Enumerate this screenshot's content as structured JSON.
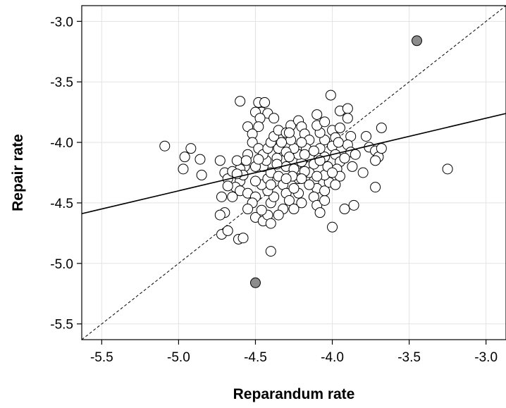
{
  "chart_data": {
    "type": "scatter",
    "xlabel": "Reparandum rate",
    "ylabel": "Repair rate",
    "xlim": [
      -5.63,
      -2.87
    ],
    "ylim": [
      -5.63,
      -2.87
    ],
    "xticks": [
      -5.5,
      -5.0,
      -4.5,
      -4.0,
      -3.5,
      -3.0
    ],
    "yticks": [
      -3.0,
      -3.5,
      -4.0,
      -4.5,
      -5.0,
      -5.5
    ],
    "xtick_labels": [
      "-5.5",
      "-5.0",
      "-4.5",
      "-4.0",
      "-3.5",
      "-3.0"
    ],
    "ytick_labels": [
      "-3.0",
      "-3.5",
      "-4.0",
      "-4.5",
      "-5.0",
      "-5.5"
    ],
    "grid": true,
    "colors": {
      "point_fill": "#ffffff",
      "highlight_fill": "#8c8c8c",
      "line": "#000000"
    },
    "fit_line": {
      "slope": 0.3,
      "intercept": -2.9
    },
    "reference_line": {
      "slope": 1,
      "intercept": 0,
      "style": "dashed"
    },
    "highlighted_points": [
      {
        "x": -3.45,
        "y": -3.16
      },
      {
        "x": -4.5,
        "y": -5.16
      }
    ],
    "points": [
      [
        -5.09,
        -4.03
      ],
      [
        -4.96,
        -4.12
      ],
      [
        -4.97,
        -4.22
      ],
      [
        -4.92,
        -4.05
      ],
      [
        -4.86,
        -4.14
      ],
      [
        -4.85,
        -4.27
      ],
      [
        -4.73,
        -4.15
      ],
      [
        -4.7,
        -4.25
      ],
      [
        -4.68,
        -4.3
      ],
      [
        -4.72,
        -4.45
      ],
      [
        -4.7,
        -4.58
      ],
      [
        -4.73,
        -4.6
      ],
      [
        -4.72,
        -4.76
      ],
      [
        -4.68,
        -4.73
      ],
      [
        -4.61,
        -4.8
      ],
      [
        -4.58,
        -4.79
      ],
      [
        -4.6,
        -3.66
      ],
      [
        -4.48,
        -3.67
      ],
      [
        -4.44,
        -3.67
      ],
      [
        -4.46,
        -3.75
      ],
      [
        -4.42,
        -3.76
      ],
      [
        -4.5,
        -3.75
      ],
      [
        -4.47,
        -3.8
      ],
      [
        -4.48,
        -3.87
      ],
      [
        -4.55,
        -3.87
      ],
      [
        -4.52,
        -3.93
      ],
      [
        -4.52,
        -4.0
      ],
      [
        -4.48,
        -4.05
      ],
      [
        -4.55,
        -4.1
      ],
      [
        -4.57,
        -4.2
      ],
      [
        -4.6,
        -4.22
      ],
      [
        -4.62,
        -4.15
      ],
      [
        -4.65,
        -4.24
      ],
      [
        -4.6,
        -4.32
      ],
      [
        -4.63,
        -4.37
      ],
      [
        -4.6,
        -4.4
      ],
      [
        -4.55,
        -4.42
      ],
      [
        -4.5,
        -4.45
      ],
      [
        -4.52,
        -4.5
      ],
      [
        -4.55,
        -4.55
      ],
      [
        -4.5,
        -4.62
      ],
      [
        -4.45,
        -4.65
      ],
      [
        -4.42,
        -4.6
      ],
      [
        -4.46,
        -4.56
      ],
      [
        -4.4,
        -4.5
      ],
      [
        -4.38,
        -4.45
      ],
      [
        -4.42,
        -4.4
      ],
      [
        -4.46,
        -4.35
      ],
      [
        -4.42,
        -4.3
      ],
      [
        -4.4,
        -4.25
      ],
      [
        -4.45,
        -4.2
      ],
      [
        -4.43,
        -4.15
      ],
      [
        -4.45,
        -4.1
      ],
      [
        -4.42,
        -4.05
      ],
      [
        -4.4,
        -4.0
      ],
      [
        -4.38,
        -3.95
      ],
      [
        -4.35,
        -3.9
      ],
      [
        -4.35,
        -4.05
      ],
      [
        -4.32,
        -4.15
      ],
      [
        -4.3,
        -4.2
      ],
      [
        -4.35,
        -4.28
      ],
      [
        -4.32,
        -4.35
      ],
      [
        -4.3,
        -4.42
      ],
      [
        -4.28,
        -4.48
      ],
      [
        -4.32,
        -4.55
      ],
      [
        -4.35,
        -4.6
      ],
      [
        -4.4,
        -4.67
      ],
      [
        -4.4,
        -4.9
      ],
      [
        -4.25,
        -4.55
      ],
      [
        -4.2,
        -4.5
      ],
      [
        -4.22,
        -4.42
      ],
      [
        -4.25,
        -4.38
      ],
      [
        -4.22,
        -4.3
      ],
      [
        -4.25,
        -4.22
      ],
      [
        -4.2,
        -4.16
      ],
      [
        -4.22,
        -4.1
      ],
      [
        -4.25,
        -4.05
      ],
      [
        -4.27,
        -3.98
      ],
      [
        -4.3,
        -3.92
      ],
      [
        -4.27,
        -3.86
      ],
      [
        -4.22,
        -3.82
      ],
      [
        -4.2,
        -3.87
      ],
      [
        -4.18,
        -3.93
      ],
      [
        -4.15,
        -3.98
      ],
      [
        -4.17,
        -4.05
      ],
      [
        -4.15,
        -4.12
      ],
      [
        -4.12,
        -4.18
      ],
      [
        -4.15,
        -4.25
      ],
      [
        -4.12,
        -4.32
      ],
      [
        -4.1,
        -4.38
      ],
      [
        -4.12,
        -4.45
      ],
      [
        -4.1,
        -4.52
      ],
      [
        -4.08,
        -4.58
      ],
      [
        -4.05,
        -4.48
      ],
      [
        -4.05,
        -4.4
      ],
      [
        -4.02,
        -4.33
      ],
      [
        -4.05,
        -4.27
      ],
      [
        -4.03,
        -4.2
      ],
      [
        -4.05,
        -4.12
      ],
      [
        -4.08,
        -4.05
      ],
      [
        -4.05,
        -3.98
      ],
      [
        -4.08,
        -3.92
      ],
      [
        -4.1,
        -3.86
      ],
      [
        -4.1,
        -3.77
      ],
      [
        -4.05,
        -3.83
      ],
      [
        -4.0,
        -3.9
      ],
      [
        -3.98,
        -3.96
      ],
      [
        -4.0,
        -4.03
      ],
      [
        -3.98,
        -4.1
      ],
      [
        -3.95,
        -4.16
      ],
      [
        -3.97,
        -4.22
      ],
      [
        -3.95,
        -4.28
      ],
      [
        -3.98,
        -4.35
      ],
      [
        -4.0,
        -4.7
      ],
      [
        -4.01,
        -3.61
      ],
      [
        -3.95,
        -3.74
      ],
      [
        -3.9,
        -3.72
      ],
      [
        -3.9,
        -3.8
      ],
      [
        -3.95,
        -3.88
      ],
      [
        -3.88,
        -3.95
      ],
      [
        -3.9,
        -4.02
      ],
      [
        -3.88,
        -4.08
      ],
      [
        -3.92,
        -4.13
      ],
      [
        -3.87,
        -4.2
      ],
      [
        -3.92,
        -4.55
      ],
      [
        -3.86,
        -4.52
      ],
      [
        -3.8,
        -4.25
      ],
      [
        -3.78,
        -3.95
      ],
      [
        -3.76,
        -4.04
      ],
      [
        -3.72,
        -4.07
      ],
      [
        -3.7,
        -4.12
      ],
      [
        -3.72,
        -4.15
      ],
      [
        -3.72,
        -4.37
      ],
      [
        -3.68,
        -3.88
      ],
      [
        -3.68,
        -4.05
      ],
      [
        -3.25,
        -4.22
      ],
      [
        -4.65,
        -4.45
      ],
      [
        -4.68,
        -4.36
      ],
      [
        -4.58,
        -4.27
      ],
      [
        -4.5,
        -4.32
      ],
      [
        -4.5,
        -4.2
      ],
      [
        -4.48,
        -4.14
      ],
      [
        -4.36,
        -4.13
      ],
      [
        -4.33,
        -4.0
      ],
      [
        -4.3,
        -4.08
      ],
      [
        -4.28,
        -4.12
      ],
      [
        -4.26,
        -4.28
      ],
      [
        -4.18,
        -4.24
      ],
      [
        -4.15,
        -4.35
      ],
      [
        -4.2,
        -4.0
      ],
      [
        -4.12,
        -4.07
      ],
      [
        -4.08,
        -4.15
      ],
      [
        -4.0,
        -4.25
      ],
      [
        -3.85,
        -4.1
      ],
      [
        -4.4,
        -4.35
      ],
      [
        -4.36,
        -4.18
      ],
      [
        -4.56,
        -4.15
      ],
      [
        -4.62,
        -4.26
      ],
      [
        -4.3,
        -4.3
      ],
      [
        -4.18,
        -4.1
      ],
      [
        -4.2,
        -4.3
      ],
      [
        -4.1,
        -4.28
      ],
      [
        -3.96,
        -4.0
      ],
      [
        -4.28,
        -3.92
      ],
      [
        -4.38,
        -3.8
      ]
    ]
  }
}
